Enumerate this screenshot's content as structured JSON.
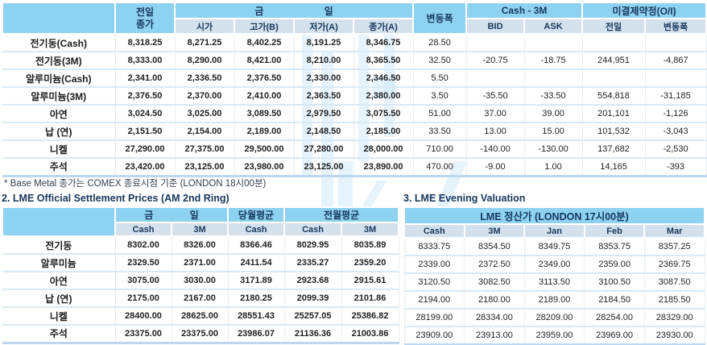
{
  "colors": {
    "header_blue": "#8ED2F1",
    "subheader_blue": "#D3E1ED",
    "header_text": "#17375D",
    "row_divider": "#D9E9F5",
    "table_bottom_border": "#BDD7EE"
  },
  "price_table": {
    "header": {
      "prev_close_line1": "전일",
      "prev_close_line2": "종가",
      "today_group": "금 일",
      "sub": [
        "시가",
        "고가(B)",
        "저가(A)",
        "종가(A)"
      ],
      "change": "변동폭",
      "cash_3m_group": "Cash - 3M",
      "bid": "BID",
      "ask": "ASK",
      "open_interest_group": "미결제약정(O/I)",
      "oi_prev": "전일",
      "oi_change": "변동폭"
    },
    "rows": [
      {
        "label": "전기동(Cash)",
        "values": [
          "8,318.25",
          "8,271.25",
          "8,402.25",
          "8,191.25",
          "8,346.75",
          "28.50",
          "",
          "",
          "",
          ""
        ]
      },
      {
        "label": "전기동(3M)",
        "values": [
          "8,333.00",
          "8,290.00",
          "8,421.00",
          "8,210.00",
          "8,365.50",
          "32.50",
          "-20.75",
          "-18.75",
          "244,951",
          "-4,867"
        ]
      },
      {
        "label": "알루미늄(Cash)",
        "values": [
          "2,341.00",
          "2,336.50",
          "2,376.50",
          "2,330.00",
          "2,346.50",
          "5.50",
          "",
          "",
          "",
          ""
        ]
      },
      {
        "label": "알루미늄(3M)",
        "values": [
          "2,376.50",
          "2,370.00",
          "2,410.00",
          "2,363.50",
          "2,380.00",
          "3.50",
          "-35.50",
          "-33.50",
          "554,818",
          "-31,185"
        ]
      },
      {
        "label": "아연",
        "values": [
          "3,024.50",
          "3,025.00",
          "3,089.50",
          "2,979.50",
          "3,075.50",
          "51.00",
          "37.00",
          "39.00",
          "201,101",
          "-1,126"
        ]
      },
      {
        "label": "납 (연)",
        "values": [
          "2,151.50",
          "2,154.00",
          "2,189.00",
          "2,148.50",
          "2,185.00",
          "33.50",
          "13.00",
          "15.00",
          "101,532",
          "-3,043"
        ]
      },
      {
        "label": "니켈",
        "values": [
          "27,290.00",
          "27,375.00",
          "29,500.00",
          "27,280.00",
          "28,000.00",
          "710.00",
          "-140.00",
          "-130.00",
          "137,682",
          "-2,530"
        ]
      },
      {
        "label": "주석",
        "values": [
          "23,420.00",
          "23,125.00",
          "23,980.00",
          "23,125.00",
          "23,890.00",
          "470.00",
          "-9.00",
          "1.00",
          "14,165",
          "-393"
        ]
      }
    ],
    "footnote": "* Base Metal 종가는 COMEX 종료시점 기준 (LONDON 18시00분)"
  },
  "settlement_table": {
    "title": "2. LME Official Settlement Prices (AM 2nd Ring)",
    "header": {
      "today_group": "금 일",
      "month_avg_group": "당월평균",
      "prev_month_avg_group": "전월평균",
      "sub": [
        "Cash",
        "3M",
        "Cash",
        "Cash",
        "3M"
      ]
    },
    "rows": [
      {
        "label": "전기동",
        "values": [
          "8302.00",
          "8326.00",
          "8366.46",
          "8029.95",
          "8035.89"
        ]
      },
      {
        "label": "알루미늄",
        "values": [
          "2329.50",
          "2371.00",
          "2411.54",
          "2335.27",
          "2359.20"
        ]
      },
      {
        "label": "아연",
        "values": [
          "3075.00",
          "3030.00",
          "3171.89",
          "2923.68",
          "2915.61"
        ]
      },
      {
        "label": "납 (연)",
        "values": [
          "2175.00",
          "2167.00",
          "2180.25",
          "2099.39",
          "2101.86"
        ]
      },
      {
        "label": "니켈",
        "values": [
          "28400.00",
          "28625.00",
          "28551.43",
          "25257.05",
          "25386.82"
        ]
      },
      {
        "label": "주석",
        "values": [
          "23375.00",
          "23375.00",
          "23986.07",
          "21136.36",
          "21003.86"
        ]
      }
    ]
  },
  "evening_table": {
    "title": "3. LME Evening Valuation",
    "header": {
      "main": "LME 정산가 (LONDON 17시00분)",
      "sub": [
        "Cash",
        "3M",
        "Jan",
        "Feb",
        "Mar"
      ]
    },
    "rows": [
      {
        "values": [
          "8333.75",
          "8354.50",
          "8349.75",
          "8353.75",
          "8357.25"
        ]
      },
      {
        "values": [
          "2339.00",
          "2372.50",
          "2349.00",
          "2359.00",
          "2369.75"
        ]
      },
      {
        "values": [
          "3120.50",
          "3082.50",
          "3113.50",
          "3100.50",
          "3087.50"
        ]
      },
      {
        "values": [
          "2194.00",
          "2180.00",
          "2189.00",
          "2184.50",
          "2185.50"
        ]
      },
      {
        "values": [
          "28199.00",
          "28334.00",
          "28209.00",
          "28254.00",
          "28329.00"
        ]
      },
      {
        "values": [
          "23909.00",
          "23913.00",
          "23959.00",
          "23969.00",
          "23930.00"
        ]
      }
    ]
  }
}
